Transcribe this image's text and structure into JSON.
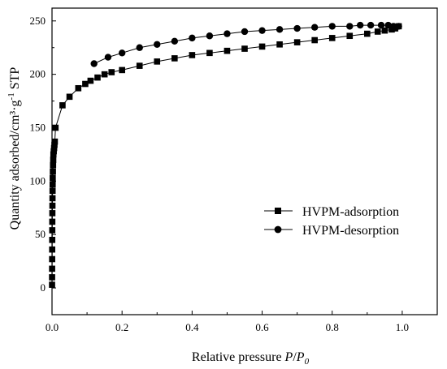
{
  "chart_data": {
    "type": "scatter",
    "xlabel": {
      "text": "Relative pressure ",
      "italic": "P",
      "slash": "/",
      "italic2": "P",
      "subscript": "0"
    },
    "ylabel": {
      "before": "Quantity adsorbed/cm³·g",
      "superscript": "-1",
      "after": " STP"
    },
    "xlim": [
      0.0,
      1.1
    ],
    "ylim": [
      -25,
      262
    ],
    "xticks": [
      0.0,
      0.2,
      0.4,
      0.6,
      0.8,
      1.0
    ],
    "xtick_labels": [
      "0.0",
      "0.2",
      "0.4",
      "0.6",
      "0.8",
      "1.0"
    ],
    "yticks": [
      0,
      50,
      100,
      150,
      200,
      250
    ],
    "ytick_labels": [
      "0",
      "50",
      "100",
      "150",
      "200",
      "250"
    ],
    "grid": false,
    "legend_position": "center-right",
    "series": [
      {
        "name": "HVPM-adsorption",
        "marker": "square",
        "color": "#000000",
        "x": [
          0.0001,
          0.0002,
          0.0003,
          0.0004,
          0.0005,
          0.0006,
          0.0007,
          0.0008,
          0.001,
          0.0012,
          0.0014,
          0.0016,
          0.0018,
          0.002,
          0.0025,
          0.003,
          0.0035,
          0.004,
          0.005,
          0.006,
          0.007,
          0.008,
          0.01,
          0.03,
          0.05,
          0.075,
          0.095,
          0.11,
          0.13,
          0.15,
          0.17,
          0.2,
          0.25,
          0.3,
          0.35,
          0.4,
          0.45,
          0.5,
          0.55,
          0.6,
          0.65,
          0.7,
          0.75,
          0.8,
          0.85,
          0.9,
          0.93,
          0.95,
          0.97,
          0.98,
          0.99
        ],
        "y": [
          3,
          10,
          18,
          27,
          36,
          45,
          54,
          62,
          70,
          77,
          84,
          91,
          97,
          103,
          109,
          115,
          120,
          125,
          128,
          131,
          134,
          137,
          150,
          171,
          179,
          187,
          191,
          194,
          197,
          200,
          202,
          204,
          208,
          212,
          215,
          218,
          220,
          222,
          224,
          226,
          228,
          230,
          232,
          234,
          236,
          238,
          240,
          241,
          242,
          243,
          245
        ]
      },
      {
        "name": "HVPM-desorption",
        "marker": "circle",
        "color": "#000000",
        "x": [
          0.12,
          0.16,
          0.2,
          0.25,
          0.3,
          0.35,
          0.4,
          0.45,
          0.5,
          0.55,
          0.6,
          0.65,
          0.7,
          0.75,
          0.8,
          0.85,
          0.88,
          0.91,
          0.94,
          0.96,
          0.975,
          0.99
        ],
        "y": [
          210,
          216,
          220,
          225,
          228,
          231,
          234,
          236,
          238,
          240,
          241,
          242,
          243,
          244,
          245,
          245,
          246,
          246,
          246,
          246,
          245,
          245
        ]
      }
    ]
  }
}
